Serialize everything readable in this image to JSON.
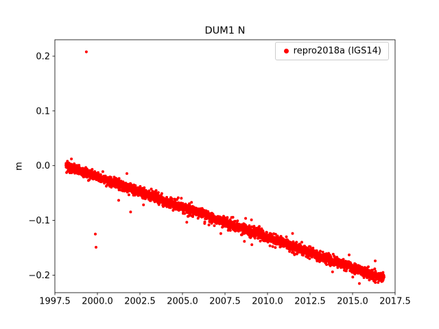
{
  "figure": {
    "background": "#ffffff"
  },
  "chart_data": {
    "type": "scatter",
    "title": "DUM1 N",
    "xlabel": "",
    "ylabel": "m",
    "xlim": [
      1997.5,
      2017.5
    ],
    "ylim": [
      -0.232,
      0.23
    ],
    "grid": false,
    "xtick_values": [
      1997.5,
      2000.0,
      2002.5,
      2005.0,
      2007.5,
      2010.0,
      2012.5,
      2015.0,
      2017.5
    ],
    "xtick_labels": [
      "1997.5",
      "2000.0",
      "2002.5",
      "2005.0",
      "2007.5",
      "2010.0",
      "2012.5",
      "2015.0",
      "2017.5"
    ],
    "ytick_values": [
      -0.2,
      -0.1,
      0.0,
      0.1,
      0.2
    ],
    "ytick_labels": [
      "−0.2",
      "−0.1",
      "0.0",
      "0.1",
      "0.2"
    ],
    "legend": {
      "position": "upper right",
      "entries": [
        {
          "label": "repro2018a (IGS14)",
          "color": "#ff0000",
          "marker": "dot"
        }
      ]
    },
    "series": [
      {
        "name": "repro2018a (IGS14)",
        "color": "#ff0000",
        "marker": "dot",
        "marker_radius_px": 2,
        "x_start": 1998.15,
        "x_end": 2016.85,
        "trend": {
          "y_at_start": 0.0,
          "y_at_end": -0.207
        },
        "noise_std": 0.0045,
        "outlier_noise_std": 0.013,
        "outlier_fraction": 0.02,
        "n_points": 3200,
        "outliers": [
          [
            1999.35,
            0.208
          ],
          [
            1999.88,
            -0.125
          ],
          [
            1999.92,
            -0.149
          ]
        ]
      }
    ]
  }
}
